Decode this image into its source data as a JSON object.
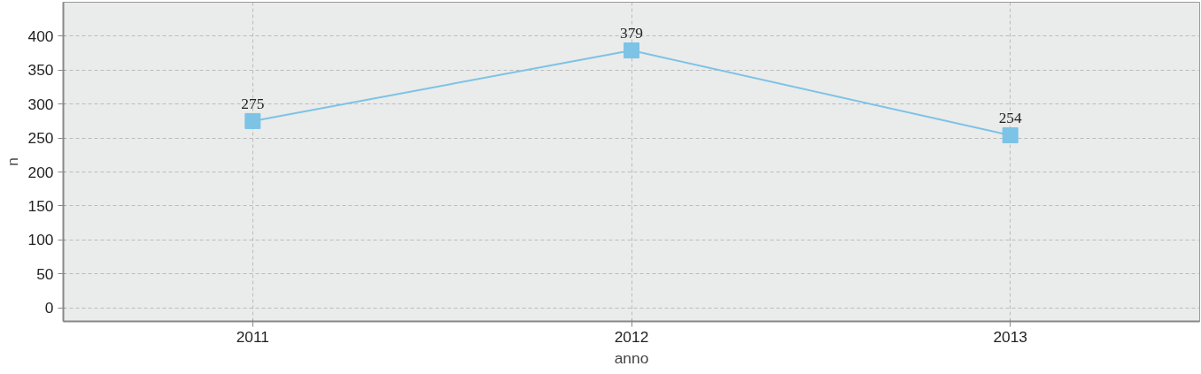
{
  "chart_data": {
    "type": "line",
    "xlabel": "anno",
    "ylabel": "n",
    "categories": [
      "2011",
      "2012",
      "2013"
    ],
    "series": [
      {
        "color": "#7cc3e6",
        "values": [
          275,
          379,
          254
        ]
      }
    ],
    "ylim": [
      -20,
      450
    ],
    "yticks": [
      0,
      50,
      100,
      150,
      200,
      250,
      300,
      350,
      400
    ],
    "grid": true,
    "marker": "square",
    "line_style": "solid",
    "data_labels": true
  }
}
